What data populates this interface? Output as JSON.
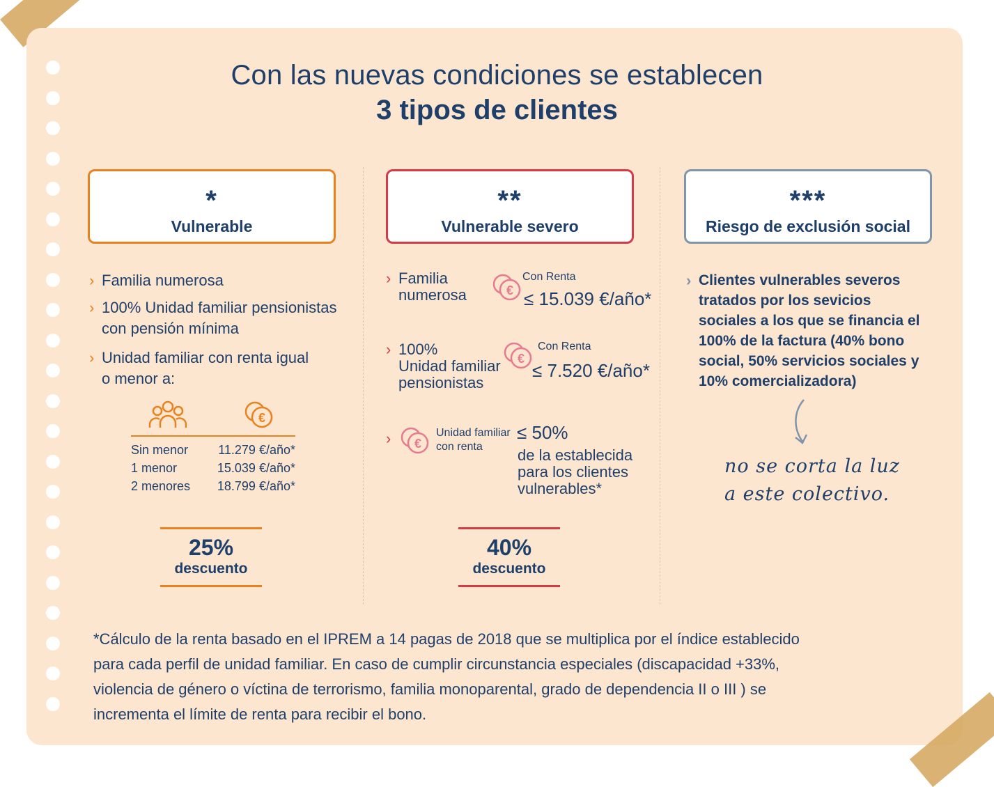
{
  "title": {
    "line1": "Con las nuevas condiciones se establecen",
    "line2": "3 tipos de clientes"
  },
  "columns": [
    {
      "stars": "*",
      "name": "Vulnerable",
      "accent": "#e8821f",
      "bullets": [
        "Familia numerosa",
        "100% Unidad familiar pensionistas",
        "con pensión mínima",
        "Unidad familiar con renta igual",
        "o menor a:"
      ],
      "table": [
        {
          "label": "Sin menor",
          "value": "11.279 €/año*"
        },
        {
          "label": "1 menor",
          "value": "15.039 €/año*"
        },
        {
          "label": "2 menores",
          "value": "18.799 €/año*"
        }
      ],
      "discount": {
        "pct": "25%",
        "label": "descuento"
      }
    },
    {
      "stars": "**",
      "name": "Vulnerable severo",
      "accent": "#d43b45",
      "items": [
        {
          "text1": "Familia",
          "text2": "numerosa",
          "caption": "Con Renta",
          "value": "≤ 15.039 €/año*"
        },
        {
          "text1": "100%",
          "text2": "Unidad familiar",
          "text3": "pensionistas",
          "caption": "Con Renta",
          "value": "≤ 7.520 €/año*"
        },
        {
          "caption1": "Unidad familiar",
          "caption2": "con renta",
          "value": "≤ 50%",
          "desc1": "de la establecida",
          "desc2": "para los clientes",
          "desc3": "vulnerables*"
        }
      ],
      "discount": {
        "pct": "40%",
        "label": "descuento"
      }
    },
    {
      "stars": "***",
      "name": "Riesgo de exclusión social",
      "accent": "#8094ab",
      "lines": [
        "Clientes vulnerables severos",
        "tratados por los sevicios",
        "sociales a los que se financia el",
        "100% de la factura (40% bono",
        "social, 50% servicios sociales y",
        "10% comercializadora)"
      ],
      "handwritten1": "no se corta la luz",
      "handwritten2": "a este colectivo."
    }
  ],
  "footnote": [
    "*Cálculo de la renta basado en el IPREM a 14 pagas de 2018 que se multiplica por el índice establecido",
    "para cada perfil de unidad familiar. En caso de cumplir circunstancia especiales (discapacidad +33%,",
    "violencia de género o víctina de terrorismo, familia monoparental, grado de dependencia II o III ) se",
    "incrementa el límite de renta para recibir el bono."
  ],
  "icons": [
    "people-icon",
    "euro-coins-icon",
    "arrow-down-icon"
  ]
}
